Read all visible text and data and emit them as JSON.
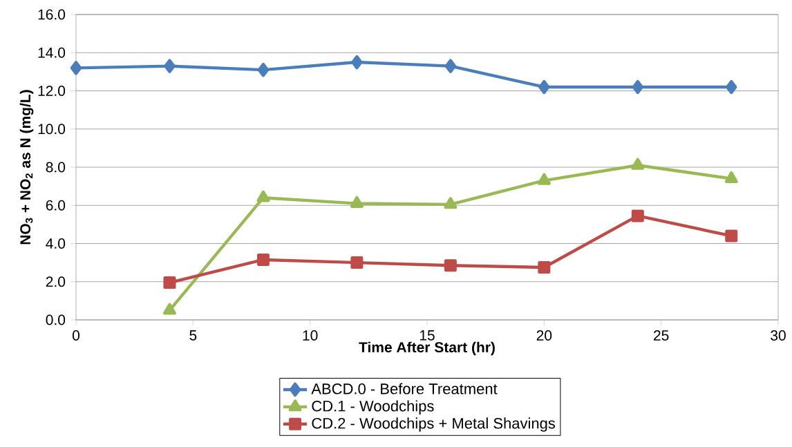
{
  "chart_data": {
    "type": "line",
    "xlabel": "Time After Start (hr)",
    "ylabel": "NO$_{3}$ + NO$_{2}$ as N (mg/L)",
    "xlim": [
      0,
      30
    ],
    "xticks": [
      0,
      5,
      10,
      15,
      20,
      25,
      30
    ],
    "ylim": [
      0,
      16
    ],
    "yticks": [
      {
        "value": 0,
        "label": "0.0"
      },
      {
        "value": 2,
        "label": "2.0"
      },
      {
        "value": 4,
        "label": "4.0"
      },
      {
        "value": 6,
        "label": "6.0"
      },
      {
        "value": 8,
        "label": "8.0"
      },
      {
        "value": 10,
        "label": "10.0"
      },
      {
        "value": 12,
        "label": "12.0"
      },
      {
        "value": 14,
        "label": "14.0"
      },
      {
        "value": 16,
        "label": "16.0"
      }
    ],
    "grid": "y",
    "legend": "bottom",
    "line_style": "solid",
    "series": [
      {
        "name": "ABCD.0 - Before Treatment",
        "color": "#4a7ebb",
        "marker": "diamond",
        "x": [
          0,
          4,
          8,
          12,
          16,
          20,
          24,
          28
        ],
        "values": [
          13.2,
          13.3,
          13.1,
          13.5,
          13.3,
          12.2,
          12.2,
          12.2
        ]
      },
      {
        "name": "CD.1 - Woodchips",
        "color": "#98b954",
        "marker": "triangle",
        "x": [
          4,
          8,
          12,
          16,
          20,
          24,
          28
        ],
        "values": [
          0.5,
          6.4,
          6.1,
          6.05,
          7.3,
          8.1,
          7.4
        ]
      },
      {
        "name": "CD.2 - Woodchips + Metal Shavings",
        "color": "#be4b48",
        "marker": "square",
        "x": [
          4,
          8,
          12,
          16,
          20,
          24,
          28
        ],
        "values": [
          1.95,
          3.15,
          3.0,
          2.85,
          2.75,
          5.45,
          4.4
        ]
      }
    ]
  }
}
